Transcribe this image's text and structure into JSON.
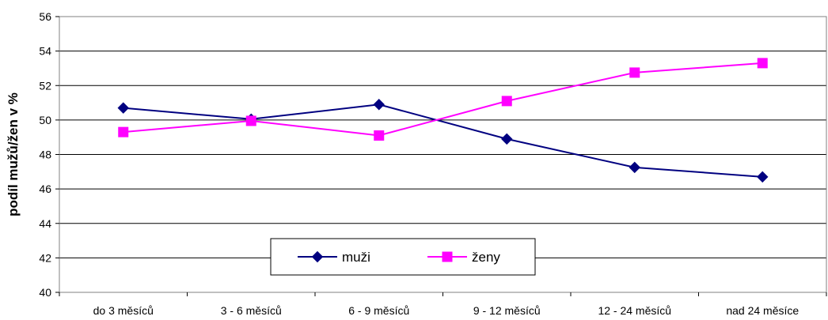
{
  "chart_data": {
    "type": "line",
    "title": "",
    "xlabel": "",
    "ylabel": "podíl mužů/žen v %",
    "categories": [
      "do 3 měsíců",
      "3 - 6 měsíců",
      "6 - 9 měsíců",
      "9 - 12 měsíců",
      "12 - 24 měsíců",
      "nad 24 měsíce"
    ],
    "yticks": [
      40,
      42,
      44,
      46,
      48,
      50,
      52,
      54,
      56
    ],
    "ylim": [
      40,
      56
    ],
    "grid": true,
    "legend_position": "bottom-center",
    "series": [
      {
        "name": "muži",
        "marker": "diamond",
        "color": "#000080",
        "values": [
          50.7,
          50.05,
          50.9,
          48.9,
          47.25,
          46.7
        ]
      },
      {
        "name": "ženy",
        "marker": "square",
        "color": "#FF00FF",
        "values": [
          49.3,
          49.95,
          49.1,
          51.1,
          52.75,
          53.3
        ]
      }
    ]
  }
}
